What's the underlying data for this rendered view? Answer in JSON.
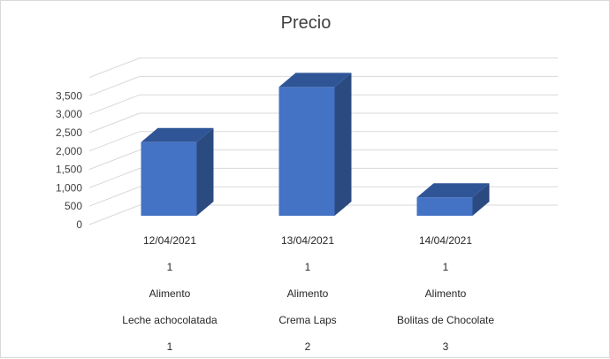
{
  "chart_data": {
    "type": "bar",
    "title": "Precio",
    "ylim": [
      0,
      4000
    ],
    "y_ticks": [
      "0",
      "500",
      "1,000",
      "1,500",
      "2,000",
      "2,500",
      "3,000",
      "3,500"
    ],
    "grid": true,
    "legend": "none",
    "category_label_rows": [
      [
        "12/04/2021",
        "13/04/2021",
        "14/04/2021"
      ],
      [
        "1",
        "1",
        "1"
      ],
      [
        "Alimento",
        "Alimento",
        "Alimento"
      ],
      [
        "Leche achocolatada",
        "Crema Laps",
        "Bolitas de Chocolate"
      ],
      [
        "1",
        "2",
        "3"
      ]
    ],
    "values": [
      2000,
      3500,
      500
    ],
    "colors": {
      "front": "#4472c4",
      "top": "#2f5597",
      "side": "#2b4a80",
      "grid": "#d9d9d9"
    }
  }
}
